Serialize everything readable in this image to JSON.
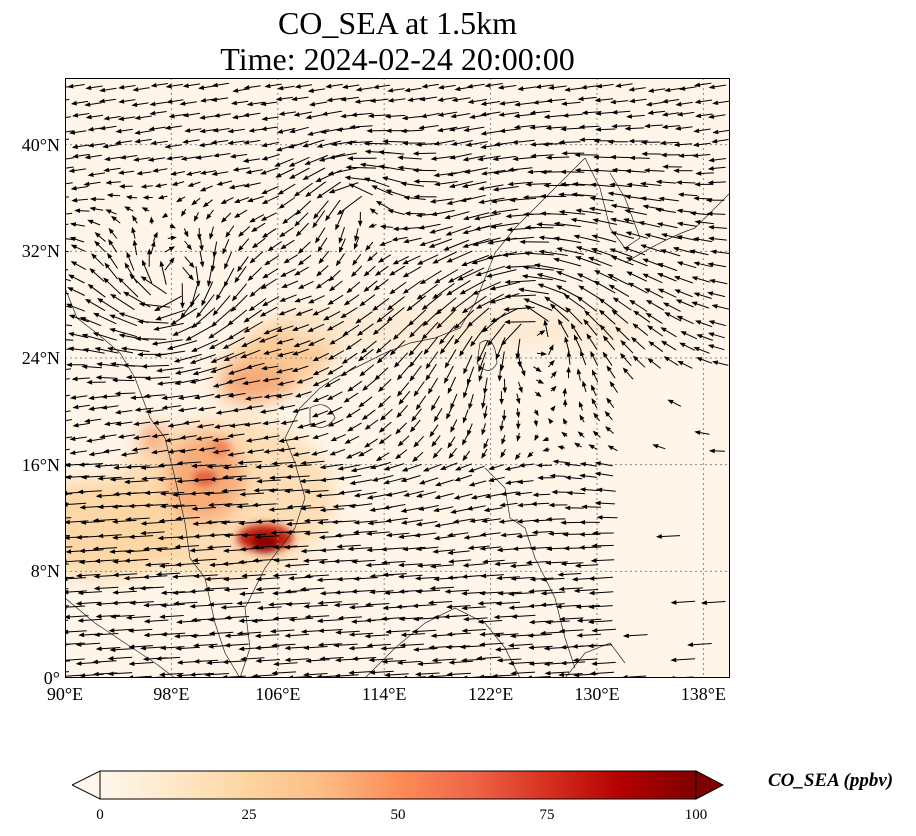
{
  "title_line1": "CO_SEA at 1.5km",
  "title_line2": "Time: 2024-02-24 20:00:00",
  "map": {
    "lon_range": [
      90,
      140
    ],
    "lat_range": [
      0,
      45
    ],
    "lon_ticks": [
      "90°E",
      "98°E",
      "106°E",
      "114°E",
      "122°E",
      "130°E",
      "138°E"
    ],
    "lon_tick_values": [
      90,
      98,
      106,
      114,
      122,
      130,
      138
    ],
    "lat_ticks": [
      "0°",
      "8°N",
      "16°N",
      "24°N",
      "32°N",
      "40°N"
    ],
    "lat_tick_values": [
      0,
      8,
      16,
      24,
      32,
      40
    ],
    "gridlines": "dotted",
    "field": "CO_SEA",
    "vectors": "wind arrows",
    "hotspots": [
      {
        "lon": 105,
        "lat": 10.5,
        "value": 100
      },
      {
        "lon": 101,
        "lat": 16.5,
        "value": 65
      },
      {
        "lon": 96.5,
        "lat": 17.5,
        "value": 45
      },
      {
        "lon": 104,
        "lat": 22,
        "value": 40
      },
      {
        "lon": 107,
        "lat": 26,
        "value": 35
      },
      {
        "lon": 92,
        "lat": 11.5,
        "value": 40
      }
    ]
  },
  "colorbar": {
    "label": "CO_SEA (ppbv)",
    "min": 0,
    "max": 100,
    "extend": "both",
    "colormap": "OrRd",
    "tick_values": [
      0,
      25,
      50,
      75,
      100
    ],
    "ticks": [
      "0",
      "25",
      "50",
      "75",
      "100"
    ],
    "colors": [
      "#fff7ec",
      "#fee8c8",
      "#fdd49e",
      "#fdbb84",
      "#fc8d59",
      "#ef6548",
      "#d7301f",
      "#b30000",
      "#7f0000"
    ]
  }
}
